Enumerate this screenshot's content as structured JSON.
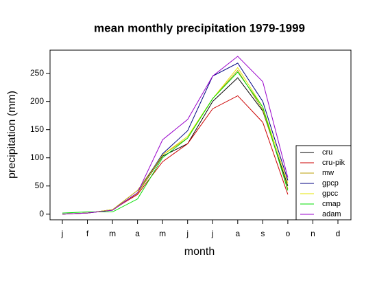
{
  "chart_data": {
    "type": "line",
    "title": "mean monthly precipitation 1979-1999",
    "x_label": "month",
    "y_label": "precipitation (mm)",
    "categories": [
      "j",
      "f",
      "m",
      "a",
      "m",
      "j",
      "j",
      "a",
      "s",
      "o",
      "n",
      "d"
    ],
    "ylim": [
      -10,
      291
    ],
    "yticks": [
      0,
      50,
      100,
      150,
      200,
      250
    ],
    "legend": "bottom-right",
    "series": [
      {
        "name": "cru",
        "color": "#000000",
        "values": [
          0,
          2,
          7,
          37,
          103,
          125,
          200,
          242,
          183,
          50,
          null,
          null
        ]
      },
      {
        "name": "cru-pik",
        "color": "#cc0000",
        "values": [
          0,
          2,
          8,
          35,
          93,
          125,
          187,
          210,
          163,
          35,
          null,
          null
        ]
      },
      {
        "name": "mw",
        "color": "#b89c00",
        "values": [
          0,
          2,
          8,
          42,
          105,
          135,
          205,
          255,
          185,
          45,
          null,
          null
        ]
      },
      {
        "name": "gpcp",
        "color": "#000080",
        "values": [
          0,
          2,
          8,
          38,
          107,
          148,
          245,
          268,
          200,
          60,
          null,
          null
        ]
      },
      {
        "name": "gpcc",
        "color": "#e6e600",
        "values": [
          0,
          2,
          8,
          37,
          105,
          138,
          205,
          260,
          190,
          55,
          null,
          null
        ]
      },
      {
        "name": "cmap",
        "color": "#00dd00",
        "values": [
          2,
          4,
          4,
          27,
          100,
          135,
          205,
          252,
          190,
          42,
          null,
          null
        ]
      },
      {
        "name": "adam",
        "color": "#9900cc",
        "values": [
          0,
          2,
          7,
          38,
          132,
          168,
          245,
          280,
          235,
          65,
          null,
          null
        ]
      }
    ]
  }
}
